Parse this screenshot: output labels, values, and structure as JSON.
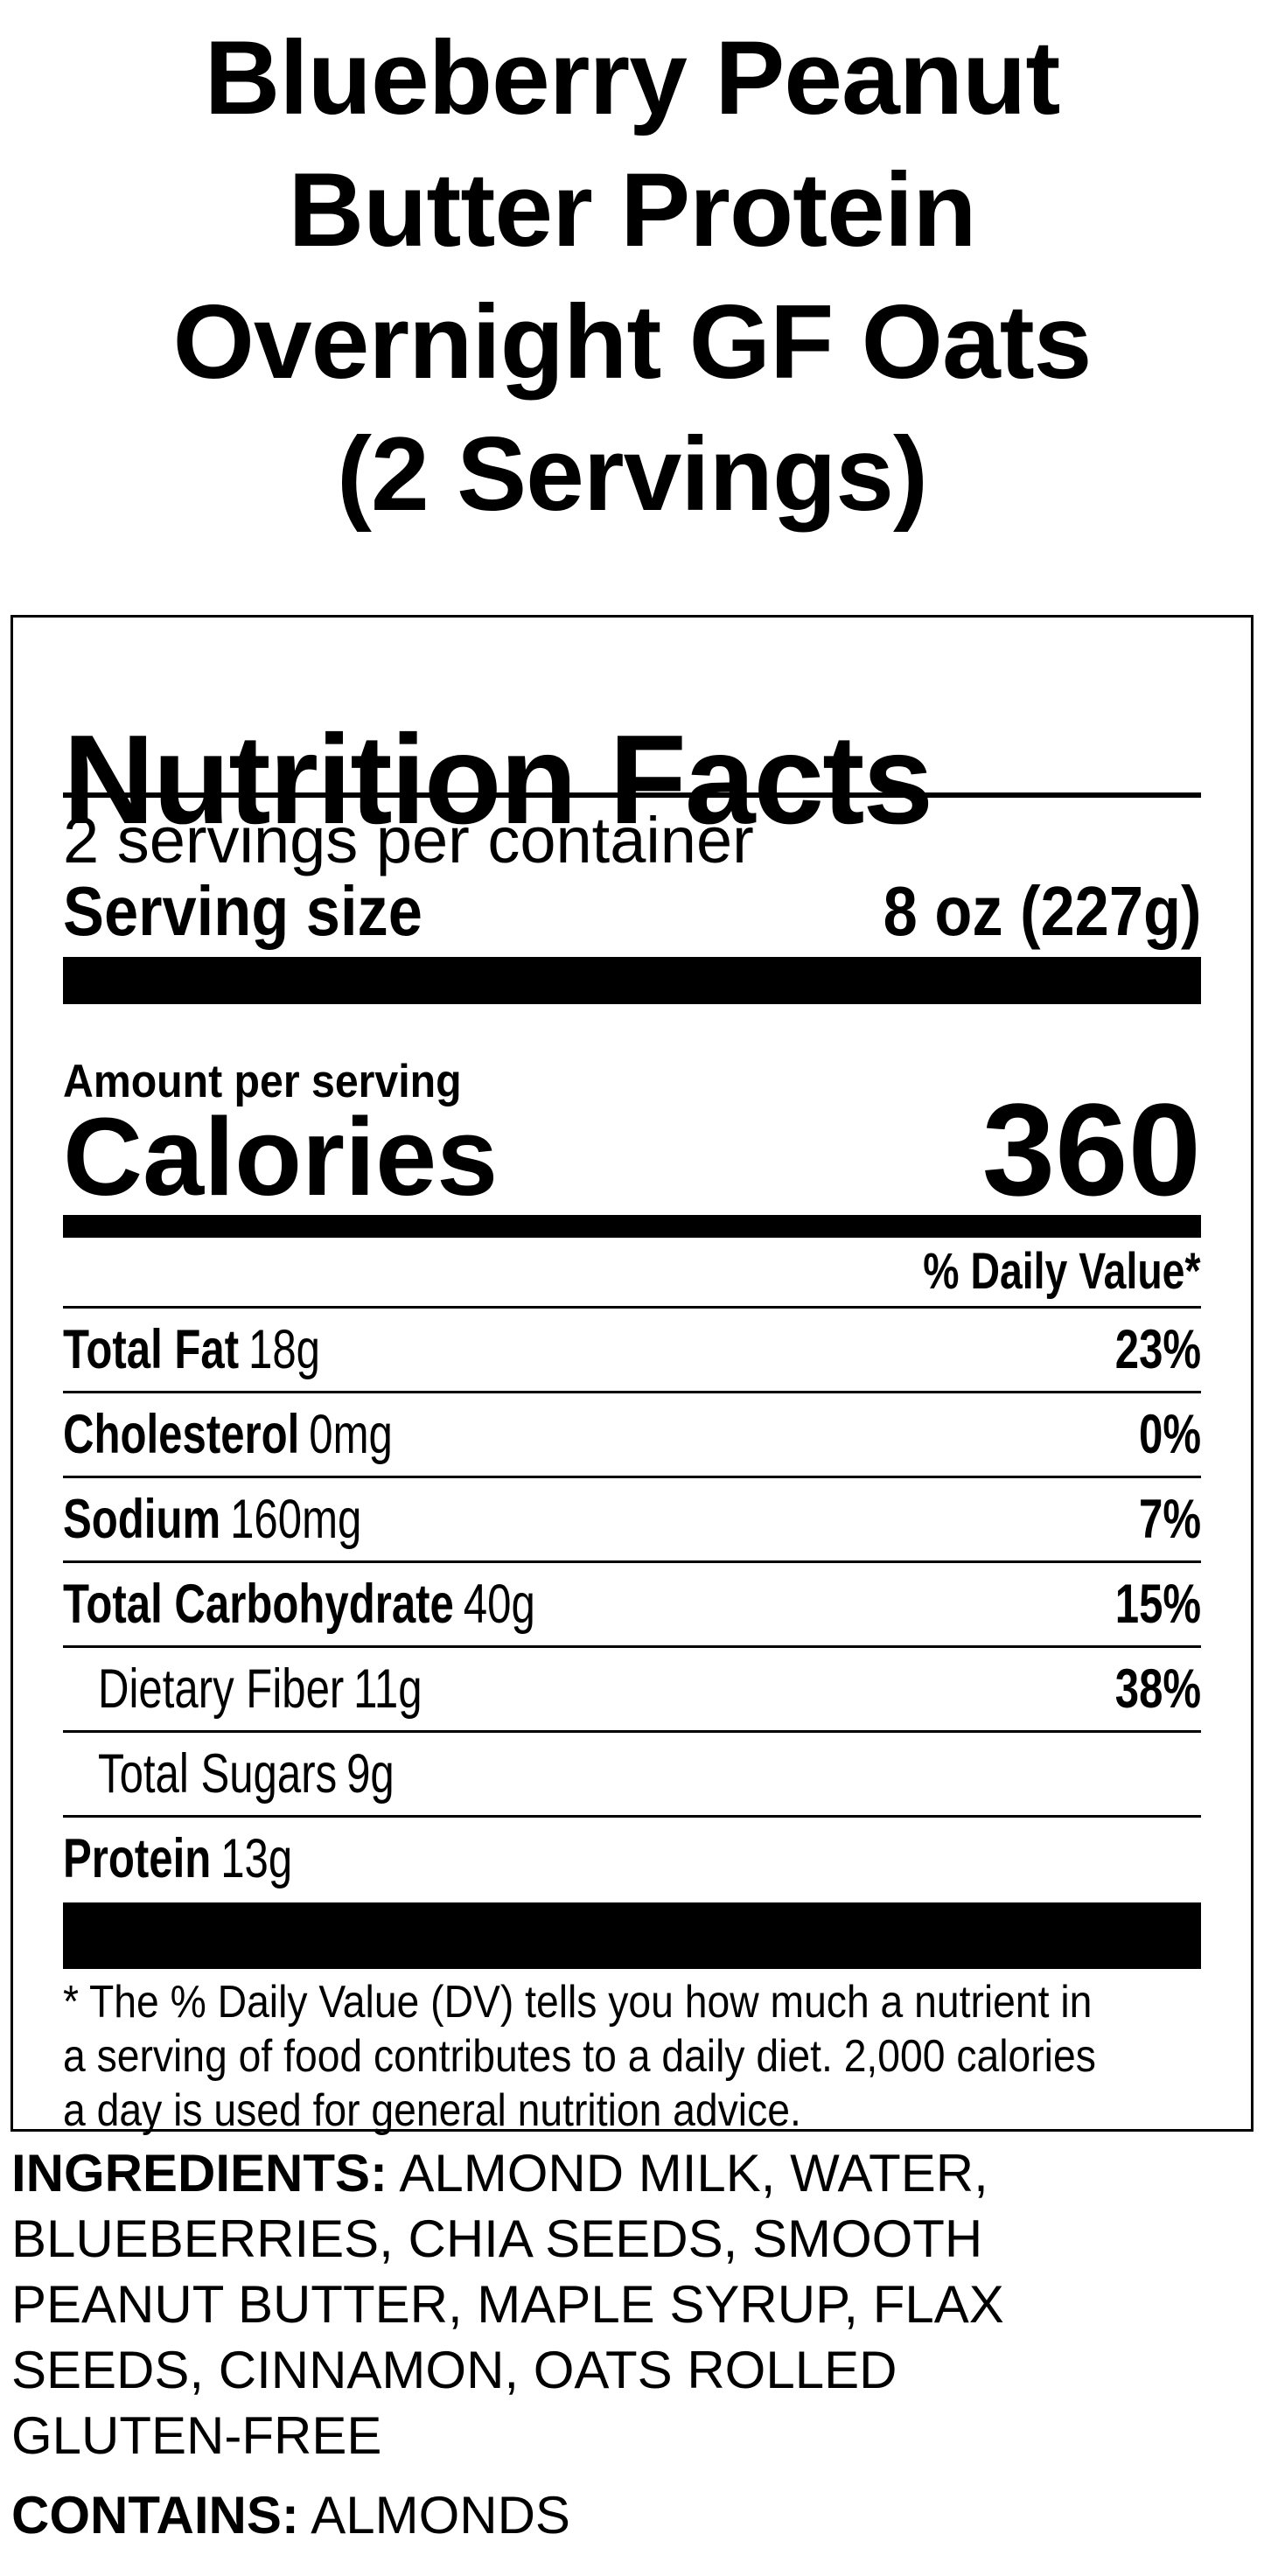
{
  "page": {
    "background": "#ffffff",
    "text_color": "#000000"
  },
  "title": {
    "lines": [
      "Blueberry Peanut",
      "Butter Protein",
      "Overnight GF Oats",
      "(2 Servings)"
    ]
  },
  "nutrition_facts": {
    "heading": "Nutrition Facts",
    "servings_per_container": "2 servings per container",
    "serving_size_label": "Serving size",
    "serving_size_value": "8 oz (227g)",
    "amount_per_serving_label": "Amount per serving",
    "calories_label": "Calories",
    "calories_value": "360",
    "daily_value_header": "% Daily Value*",
    "rows": [
      {
        "name": "Total Fat",
        "amount": "18g",
        "daily_value": "23%"
      },
      {
        "name": "Cholesterol",
        "amount": "0mg",
        "daily_value": "0%"
      },
      {
        "name": "Sodium",
        "amount": "160mg",
        "daily_value": "7%"
      },
      {
        "name": "Total Carbohydrate",
        "amount": "40g",
        "daily_value": "15%"
      },
      {
        "name": "Dietary Fiber",
        "amount": "11g",
        "daily_value": "38%"
      },
      {
        "name": "Total Sugars",
        "amount": "9g",
        "daily_value": ""
      },
      {
        "name": "Protein",
        "amount": "13g",
        "daily_value": ""
      }
    ],
    "footnote_lines": [
      "* The % Daily Value (DV) tells you how much a nutrient in",
      "a serving of food contributes to a daily diet. 2,000 calories",
      "a day is used for general nutrition advice."
    ]
  },
  "ingredients": {
    "label": "INGREDIENTS:",
    "lines": [
      "ALMOND MILK, WATER,",
      "BLUEBERRIES, CHIA SEEDS, SMOOTH",
      "PEANUT BUTTER, MAPLE SYRUP, FLAX",
      "SEEDS, CINNAMON, OATS ROLLED",
      "GLUTEN-FREE"
    ]
  },
  "contains": {
    "label": "CONTAINS:",
    "text": "ALMONDS"
  }
}
